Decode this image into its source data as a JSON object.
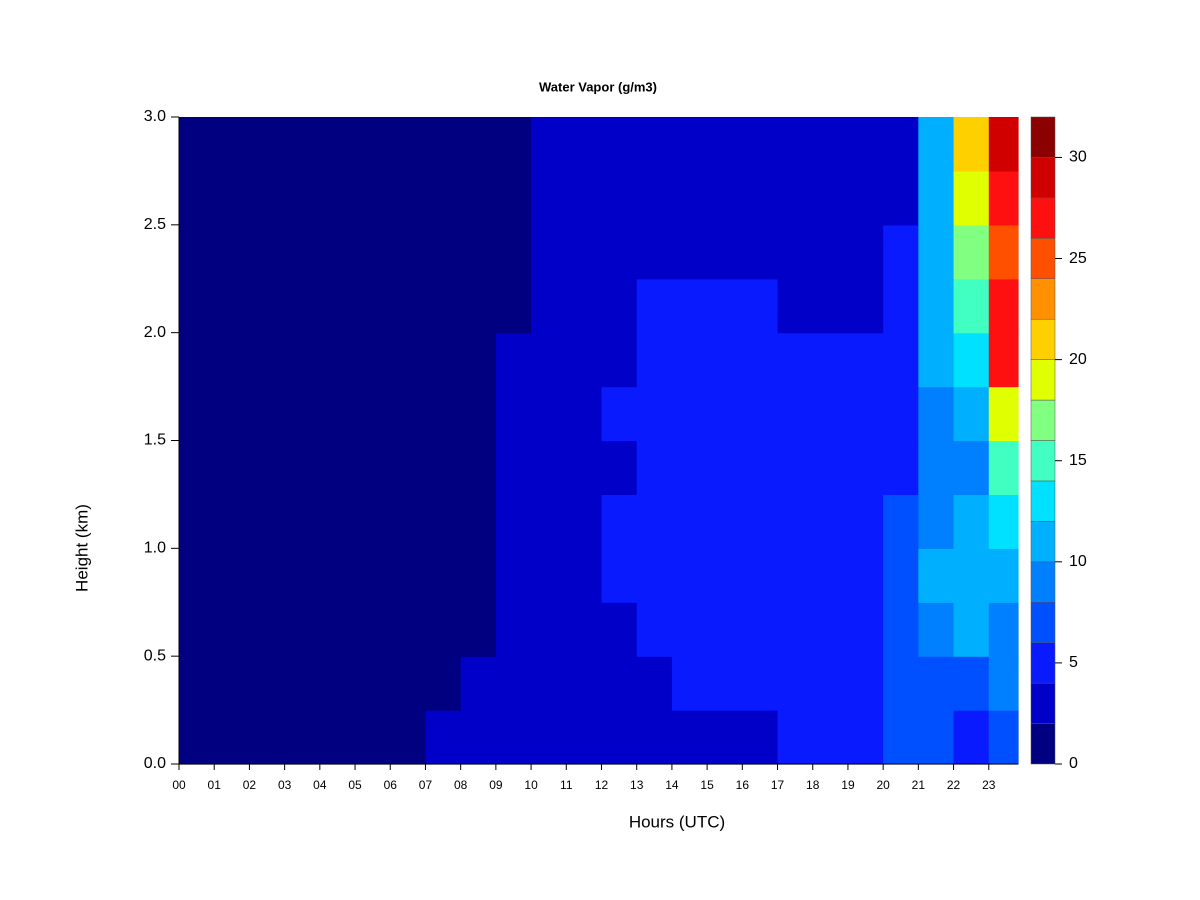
{
  "chart_data": {
    "type": "heatmap",
    "title": "Water Vapor (g/m3)",
    "xlabel": "Hours (UTC)",
    "ylabel": "Height (km)",
    "x_edges": [
      0,
      1,
      2,
      3,
      4,
      5,
      6,
      7,
      8,
      9,
      10,
      11,
      12,
      13,
      14,
      15,
      16,
      17,
      18,
      19,
      20,
      21,
      22,
      23,
      23.83
    ],
    "y_edges": [
      0,
      0.25,
      0.5,
      0.75,
      1.0,
      1.25,
      1.5,
      1.75,
      2.0,
      2.25,
      2.5,
      2.75,
      3.0
    ],
    "values": [
      [
        1,
        1,
        1,
        1,
        1,
        1,
        1,
        3,
        3,
        3,
        3,
        3,
        3,
        3,
        3,
        3,
        3,
        5,
        5,
        5,
        7,
        7,
        5,
        7
      ],
      [
        1,
        1,
        1,
        1,
        1,
        1,
        1,
        1,
        3,
        3,
        3,
        3,
        3,
        3,
        5,
        5,
        5,
        5,
        5,
        5,
        7,
        7,
        7,
        9
      ],
      [
        1,
        1,
        1,
        1,
        1,
        1,
        1,
        1,
        1,
        3,
        3,
        3,
        3,
        5,
        5,
        5,
        5,
        5,
        5,
        5,
        7,
        9,
        11,
        9
      ],
      [
        1,
        1,
        1,
        1,
        1,
        1,
        1,
        1,
        1,
        3,
        3,
        3,
        5,
        5,
        5,
        5,
        5,
        5,
        5,
        5,
        7,
        11,
        11,
        11
      ],
      [
        1,
        1,
        1,
        1,
        1,
        1,
        1,
        1,
        1,
        3,
        3,
        3,
        5,
        5,
        5,
        5,
        5,
        5,
        5,
        5,
        7,
        9,
        11,
        13
      ],
      [
        1,
        1,
        1,
        1,
        1,
        1,
        1,
        1,
        1,
        3,
        3,
        3,
        3,
        5,
        5,
        5,
        5,
        5,
        5,
        5,
        5,
        9,
        9,
        15
      ],
      [
        1,
        1,
        1,
        1,
        1,
        1,
        1,
        1,
        1,
        3,
        3,
        3,
        5,
        5,
        5,
        5,
        5,
        5,
        5,
        5,
        5,
        9,
        11,
        19
      ],
      [
        1,
        1,
        1,
        1,
        1,
        1,
        1,
        1,
        1,
        3,
        3,
        3,
        3,
        5,
        5,
        5,
        5,
        5,
        5,
        5,
        5,
        11,
        13,
        27
      ],
      [
        1,
        1,
        1,
        1,
        1,
        1,
        1,
        1,
        1,
        1,
        3,
        3,
        3,
        5,
        5,
        5,
        5,
        3,
        3,
        3,
        5,
        11,
        15,
        27
      ],
      [
        1,
        1,
        1,
        1,
        1,
        1,
        1,
        1,
        1,
        1,
        3,
        3,
        3,
        3,
        3,
        3,
        3,
        3,
        3,
        3,
        5,
        11,
        17,
        25
      ],
      [
        1,
        1,
        1,
        1,
        1,
        1,
        1,
        1,
        1,
        1,
        3,
        3,
        3,
        3,
        3,
        3,
        3,
        3,
        3,
        3,
        3,
        11,
        19,
        27
      ],
      [
        1,
        1,
        1,
        1,
        1,
        1,
        1,
        1,
        1,
        1,
        3,
        3,
        3,
        3,
        3,
        3,
        3,
        3,
        3,
        3,
        3,
        11,
        21,
        29
      ]
    ],
    "levels": [
      0,
      2,
      4,
      6,
      8,
      10,
      12,
      14,
      16,
      18,
      20,
      22,
      24,
      26,
      28,
      30,
      32
    ],
    "colors": [
      "#000080",
      "#0000c8",
      "#0a1aff",
      "#0050ff",
      "#0080ff",
      "#00b0ff",
      "#00e0ff",
      "#40ffc0",
      "#80ff80",
      "#e0ff00",
      "#ffd000",
      "#ff9000",
      "#ff5000",
      "#ff1010",
      "#d00000",
      "#8b0000"
    ],
    "xlim": [
      0,
      23.83
    ],
    "ylim": [
      0,
      3.0
    ],
    "zlim": [
      0,
      32
    ],
    "xticks": [
      {
        "value": 0,
        "label": "00"
      },
      {
        "value": 1,
        "label": "01"
      },
      {
        "value": 2,
        "label": "02"
      },
      {
        "value": 3,
        "label": "03"
      },
      {
        "value": 4,
        "label": "04"
      },
      {
        "value": 5,
        "label": "05"
      },
      {
        "value": 6,
        "label": "06"
      },
      {
        "value": 7,
        "label": "07"
      },
      {
        "value": 8,
        "label": "08"
      },
      {
        "value": 9,
        "label": "09"
      },
      10,
      11,
      12,
      13,
      14,
      15,
      16,
      17,
      18,
      19,
      20,
      21,
      22,
      23
    ],
    "yticks": [
      {
        "value": 0,
        "label": "0.0"
      },
      0.5,
      {
        "value": 1,
        "label": "1.0"
      },
      1.5,
      {
        "value": 2,
        "label": "2.0"
      },
      2.5,
      {
        "value": 3,
        "label": "3.0"
      }
    ],
    "zticks": [
      0,
      5,
      10,
      15,
      20,
      25,
      30
    ]
  }
}
